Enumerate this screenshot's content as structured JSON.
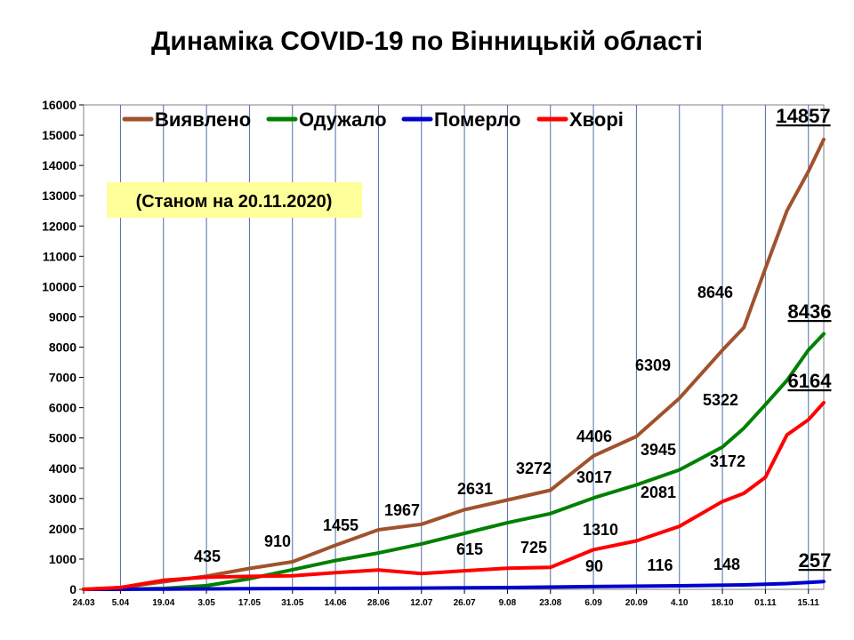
{
  "page": {
    "title": "Динаміка COVID-19 по Вінницькій області"
  },
  "chart_data": {
    "type": "line",
    "title": "Динаміка COVID-19 по Вінницькій області",
    "note": "(Станом на 20.11.2020)",
    "ylim": [
      0,
      16000
    ],
    "yticks": [
      0,
      1000,
      2000,
      3000,
      4000,
      5000,
      6000,
      7000,
      8000,
      9000,
      10000,
      11000,
      12000,
      13000,
      14000,
      15000,
      16000
    ],
    "xlim": [
      "2020-03-24",
      "2020-11-20"
    ],
    "xticks": [
      {
        "label": "24.03",
        "date": "2020-03-24"
      },
      {
        "label": "5.04",
        "date": "2020-04-05"
      },
      {
        "label": "19.04",
        "date": "2020-04-19"
      },
      {
        "label": "3.05",
        "date": "2020-05-03"
      },
      {
        "label": "17.05",
        "date": "2020-05-17"
      },
      {
        "label": "31.05",
        "date": "2020-05-31"
      },
      {
        "label": "14.06",
        "date": "2020-06-14"
      },
      {
        "label": "28.06",
        "date": "2020-06-28"
      },
      {
        "label": "12.07",
        "date": "2020-07-12"
      },
      {
        "label": "26.07",
        "date": "2020-07-26"
      },
      {
        "label": "9.08",
        "date": "2020-08-09"
      },
      {
        "label": "23.08",
        "date": "2020-08-23"
      },
      {
        "label": "6.09",
        "date": "2020-09-06"
      },
      {
        "label": "20.09",
        "date": "2020-09-20"
      },
      {
        "label": "4.10",
        "date": "2020-10-04"
      },
      {
        "label": "18.10",
        "date": "2020-10-18"
      },
      {
        "label": "01.11",
        "date": "2020-11-01"
      },
      {
        "label": "15.11",
        "date": "2020-11-15"
      }
    ],
    "vgrid_dates": [
      "2020-04-05",
      "2020-04-19",
      "2020-05-03",
      "2020-05-17",
      "2020-05-31",
      "2020-06-14",
      "2020-06-28",
      "2020-07-12",
      "2020-07-26",
      "2020-08-09",
      "2020-08-23",
      "2020-09-06",
      "2020-09-20",
      "2020-10-04",
      "2020-10-18",
      "2020-11-01",
      "2020-11-15"
    ],
    "legend_position": "top",
    "series": [
      {
        "name": "Виявлено",
        "color": "#a0522d",
        "points": [
          [
            "2020-03-24",
            0
          ],
          [
            "2020-04-05",
            60
          ],
          [
            "2020-04-19",
            250
          ],
          [
            "2020-05-03",
            435
          ],
          [
            "2020-05-17",
            690
          ],
          [
            "2020-05-31",
            910
          ],
          [
            "2020-06-14",
            1455
          ],
          [
            "2020-06-28",
            1967
          ],
          [
            "2020-07-12",
            2150
          ],
          [
            "2020-07-26",
            2631
          ],
          [
            "2020-08-09",
            2950
          ],
          [
            "2020-08-23",
            3272
          ],
          [
            "2020-09-06",
            4406
          ],
          [
            "2020-09-20",
            5050
          ],
          [
            "2020-10-04",
            6309
          ],
          [
            "2020-10-18",
            7900
          ],
          [
            "2020-10-25",
            8646
          ],
          [
            "2020-11-01",
            10600
          ],
          [
            "2020-11-08",
            12500
          ],
          [
            "2020-11-15",
            13800
          ],
          [
            "2020-11-20",
            14857
          ]
        ]
      },
      {
        "name": "Одужало",
        "color": "#008000",
        "points": [
          [
            "2020-03-24",
            0
          ],
          [
            "2020-04-05",
            0
          ],
          [
            "2020-04-19",
            30
          ],
          [
            "2020-05-03",
            120
          ],
          [
            "2020-05-17",
            350
          ],
          [
            "2020-05-31",
            650
          ],
          [
            "2020-06-14",
            950
          ],
          [
            "2020-06-28",
            1200
          ],
          [
            "2020-07-12",
            1500
          ],
          [
            "2020-07-26",
            1850
          ],
          [
            "2020-08-09",
            2200
          ],
          [
            "2020-08-23",
            2500
          ],
          [
            "2020-09-06",
            3017
          ],
          [
            "2020-09-20",
            3450
          ],
          [
            "2020-10-04",
            3945
          ],
          [
            "2020-10-18",
            4700
          ],
          [
            "2020-10-25",
            5322
          ],
          [
            "2020-11-01",
            6100
          ],
          [
            "2020-11-08",
            6900
          ],
          [
            "2020-11-15",
            7900
          ],
          [
            "2020-11-20",
            8436
          ]
        ]
      },
      {
        "name": "Померло",
        "color": "#0000cc",
        "points": [
          [
            "2020-03-24",
            0
          ],
          [
            "2020-04-19",
            10
          ],
          [
            "2020-05-17",
            20
          ],
          [
            "2020-06-14",
            30
          ],
          [
            "2020-07-12",
            40
          ],
          [
            "2020-08-09",
            60
          ],
          [
            "2020-09-06",
            90
          ],
          [
            "2020-10-04",
            116
          ],
          [
            "2020-10-25",
            148
          ],
          [
            "2020-11-08",
            190
          ],
          [
            "2020-11-15",
            230
          ],
          [
            "2020-11-20",
            257
          ]
        ]
      },
      {
        "name": "Хворі",
        "color": "#ff0000",
        "points": [
          [
            "2020-03-24",
            0
          ],
          [
            "2020-04-05",
            60
          ],
          [
            "2020-04-19",
            300
          ],
          [
            "2020-05-03",
            400
          ],
          [
            "2020-05-17",
            430
          ],
          [
            "2020-05-31",
            450
          ],
          [
            "2020-06-14",
            550
          ],
          [
            "2020-06-28",
            640
          ],
          [
            "2020-07-12",
            520
          ],
          [
            "2020-07-26",
            615
          ],
          [
            "2020-08-09",
            700
          ],
          [
            "2020-08-23",
            725
          ],
          [
            "2020-09-06",
            1310
          ],
          [
            "2020-09-20",
            1600
          ],
          [
            "2020-10-04",
            2081
          ],
          [
            "2020-10-18",
            2900
          ],
          [
            "2020-10-25",
            3172
          ],
          [
            "2020-11-01",
            3700
          ],
          [
            "2020-11-08",
            5100
          ],
          [
            "2020-11-15",
            5600
          ],
          [
            "2020-11-20",
            6164
          ]
        ]
      }
    ],
    "annotations": [
      {
        "text": "435",
        "date": "2020-05-03",
        "value": 435,
        "bold_underline": false
      },
      {
        "text": "910",
        "date": "2020-05-31",
        "value": 910,
        "bold_underline": false
      },
      {
        "text": "1455",
        "date": "2020-06-14",
        "value": 1455,
        "bold_underline": false
      },
      {
        "text": "1967",
        "date": "2020-06-28",
        "value": 1967,
        "bold_underline": false
      },
      {
        "text": "2631",
        "date": "2020-07-26",
        "value": 2631,
        "bold_underline": false
      },
      {
        "text": "3272",
        "date": "2020-08-23",
        "value": 3272,
        "bold_underline": false
      },
      {
        "text": "4406",
        "date": "2020-09-06",
        "value": 4406,
        "bold_underline": false
      },
      {
        "text": "6309",
        "date": "2020-10-04",
        "value": 6309,
        "bold_underline": false
      },
      {
        "text": "8646",
        "date": "2020-10-25",
        "value": 8646,
        "bold_underline": false
      },
      {
        "text": "14857",
        "date": "2020-11-20",
        "value": 14857,
        "bold_underline": true
      },
      {
        "text": "3017",
        "date": "2020-09-06",
        "value": 3017,
        "bold_underline": false
      },
      {
        "text": "3945",
        "date": "2020-10-04",
        "value": 3945,
        "bold_underline": false
      },
      {
        "text": "5322",
        "date": "2020-10-25",
        "value": 5322,
        "bold_underline": false
      },
      {
        "text": "8436",
        "date": "2020-11-20",
        "value": 8436,
        "bold_underline": true
      },
      {
        "text": "615",
        "date": "2020-07-26",
        "value": 615,
        "bold_underline": false
      },
      {
        "text": "725",
        "date": "2020-08-23",
        "value": 725,
        "bold_underline": false
      },
      {
        "text": "1310",
        "date": "2020-09-06",
        "value": 1310,
        "bold_underline": false
      },
      {
        "text": "2081",
        "date": "2020-10-04",
        "value": 2081,
        "bold_underline": false
      },
      {
        "text": "3172",
        "date": "2020-10-25",
        "value": 3172,
        "bold_underline": false
      },
      {
        "text": "6164",
        "date": "2020-11-20",
        "value": 6164,
        "bold_underline": true
      },
      {
        "text": "90",
        "date": "2020-09-06",
        "value": 90,
        "bold_underline": false
      },
      {
        "text": "116",
        "date": "2020-10-04",
        "value": 116,
        "bold_underline": false
      },
      {
        "text": "148",
        "date": "2020-10-25",
        "value": 148,
        "bold_underline": false
      },
      {
        "text": "257",
        "date": "2020-11-20",
        "value": 257,
        "bold_underline": true
      }
    ]
  }
}
